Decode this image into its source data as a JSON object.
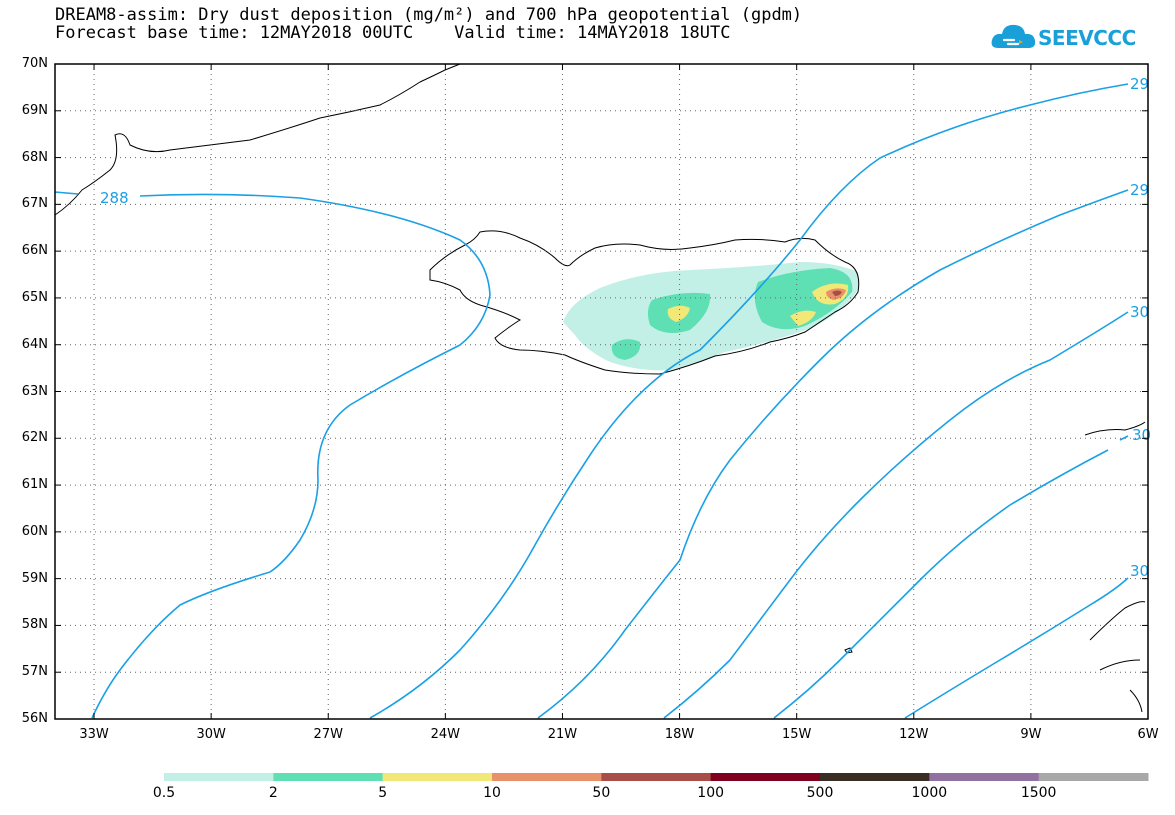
{
  "title": {
    "line1": "DREAM8-assim: Dry dust deposition (mg/m²) and 700 hPa geopotential (gpdm)",
    "line2": "Forecast base time: 12MAY2018 00UTC    Valid time: 14MAY2018 18UTC"
  },
  "logo": {
    "text": "SEEVCCC",
    "color": "#1aa0d8"
  },
  "map": {
    "lat_range": [
      56,
      70
    ],
    "lon_range": [
      -34,
      -6
    ],
    "lat_labels": [
      "56N",
      "57N",
      "58N",
      "59N",
      "60N",
      "61N",
      "62N",
      "63N",
      "64N",
      "65N",
      "66N",
      "67N",
      "68N",
      "69N",
      "70N"
    ],
    "lon_labels": [
      "33W",
      "30W",
      "27W",
      "24W",
      "21W",
      "18W",
      "15W",
      "12W",
      "9W",
      "6W"
    ],
    "contour_color": "#1aa0e6",
    "contour_labels": [
      "288",
      "29",
      "29",
      "30",
      "30",
      "30"
    ]
  },
  "legend": {
    "colors": [
      "#c2f0e6",
      "#5fe0b4",
      "#f2e878",
      "#e8926a",
      "#a84e48",
      "#800020",
      "#3a2e24",
      "#9270a0",
      "#a8a8a8"
    ],
    "labels": [
      "0.5",
      "2",
      "5",
      "10",
      "50",
      "100",
      "500",
      "1000",
      "1500"
    ]
  }
}
